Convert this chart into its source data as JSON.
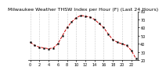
{
  "title": "Milwaukee Weather THSW Index per Hour (F) (Last 24 Hours)",
  "hours": [
    0,
    1,
    2,
    3,
    4,
    5,
    6,
    7,
    8,
    9,
    10,
    11,
    12,
    13,
    14,
    15,
    16,
    17,
    18,
    19,
    20,
    21,
    22,
    23
  ],
  "values": [
    42,
    38,
    36,
    35,
    34,
    35,
    40,
    50,
    60,
    67,
    72,
    75,
    74,
    73,
    70,
    65,
    60,
    52,
    45,
    42,
    40,
    38,
    32,
    22
  ],
  "line_color": "#cc0000",
  "marker_color": "#000000",
  "bg_color": "#ffffff",
  "plot_bg": "#ffffff",
  "grid_color": "#999999",
  "ylim": [
    20,
    80
  ],
  "xlim_min": -0.5,
  "xlim_max": 23.5,
  "title_fontsize": 4.5,
  "tick_fontsize": 3.5,
  "x_ticks": [
    0,
    2,
    4,
    6,
    8,
    10,
    12,
    14,
    16,
    18,
    20,
    22
  ],
  "y_ticks": [
    20,
    30,
    40,
    50,
    60,
    70,
    80
  ]
}
